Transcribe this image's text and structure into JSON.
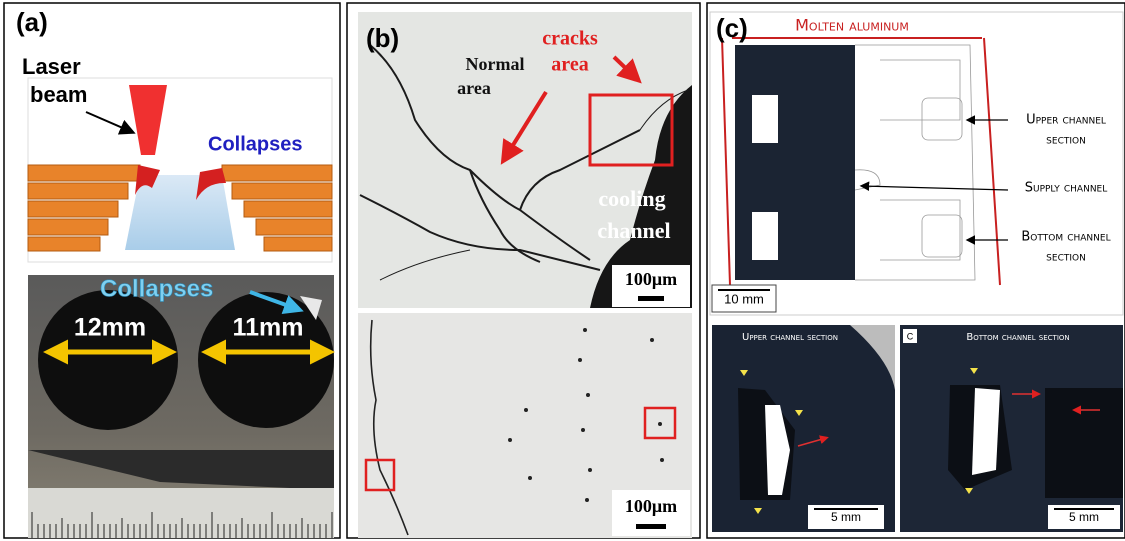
{
  "panel_a": {
    "label": "(a)",
    "laser": [
      "Laser",
      "beam"
    ],
    "collapses_schematic": "Collapses",
    "collapses_photo": "Collapses",
    "widths": [
      "12mm",
      "11mm"
    ]
  },
  "panel_b": {
    "label": "(b)",
    "cracks": [
      "cracks",
      "area"
    ],
    "normal": [
      "Normal",
      "area"
    ],
    "channel": [
      "cooling",
      "channel"
    ],
    "scale_bars": [
      "100μm",
      "100μm"
    ]
  },
  "panel_c": {
    "label": "(c)",
    "title": "Molten aluminum",
    "callouts": [
      [
        "Upper channel",
        "section"
      ],
      [
        "Supply channel"
      ],
      [
        "Bottom channel",
        "section"
      ]
    ],
    "scale_main": "10 mm",
    "sub_label": "C",
    "subpanels": [
      {
        "title": "Upper channel section",
        "scale": "5 mm"
      },
      {
        "title": "Bottom channel section",
        "scale": "5 mm"
      }
    ]
  }
}
